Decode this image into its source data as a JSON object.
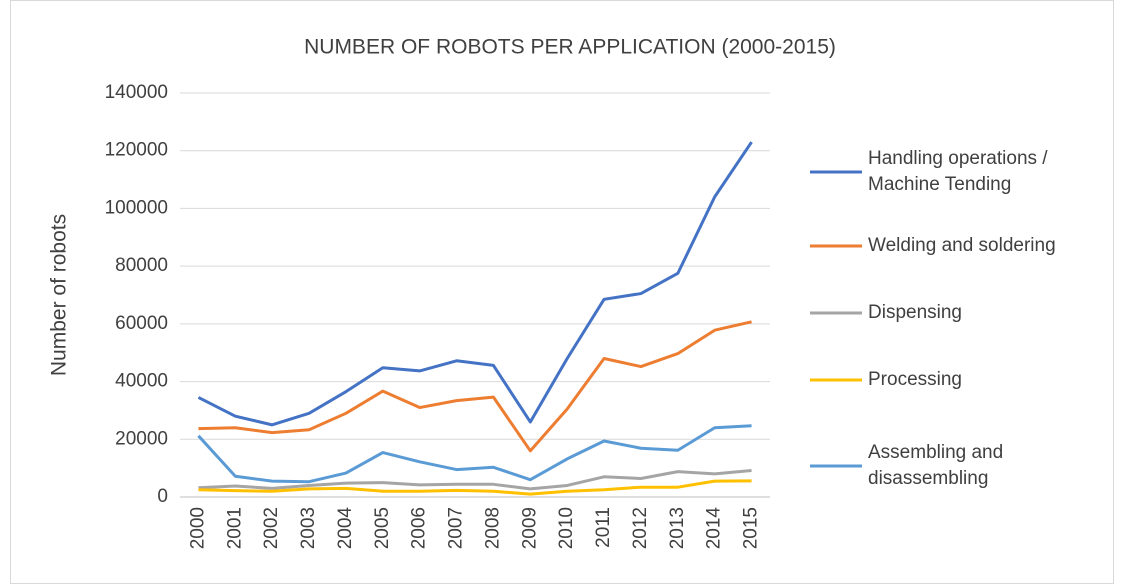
{
  "chart_data": {
    "type": "line",
    "title": "NUMBER OF ROBOTS PER APPLICATION (2000-2015)",
    "y_label": "Number of robots",
    "categories": [
      "2000",
      "2001",
      "2002",
      "2003",
      "2004",
      "2005",
      "2006",
      "2007",
      "2008",
      "2009",
      "2010",
      "2011",
      "2012",
      "2013",
      "2014",
      "2015"
    ],
    "series": [
      {
        "name": "Handling operations / Machine Tending",
        "color": "#4472c4",
        "values": [
          34500,
          28000,
          25000,
          29000,
          36500,
          44800,
          43700,
          47200,
          45600,
          26000,
          48000,
          68500,
          70500,
          77500,
          104000,
          123000
        ]
      },
      {
        "name": "Welding and soldering",
        "color": "#ed7d31",
        "values": [
          23700,
          24000,
          22300,
          23300,
          29000,
          36700,
          31000,
          33400,
          34600,
          16000,
          30500,
          48000,
          45200,
          49700,
          57800,
          60700
        ]
      },
      {
        "name": "Dispensing",
        "color": "#a5a5a5",
        "values": [
          3200,
          3800,
          3000,
          4000,
          4800,
          5000,
          4200,
          4400,
          4400,
          2800,
          4000,
          7000,
          6400,
          8800,
          8000,
          9200
        ]
      },
      {
        "name": "Processing",
        "color": "#ffc000",
        "values": [
          2500,
          2200,
          2000,
          2800,
          3000,
          2000,
          2000,
          2300,
          2000,
          1000,
          2000,
          2500,
          3400,
          3400,
          5500,
          5600
        ]
      },
      {
        "name": "Assembling and disassembling",
        "color": "#5b9bd5",
        "values": [
          21200,
          7200,
          5500,
          5300,
          8300,
          15400,
          12200,
          9500,
          10300,
          6000,
          13200,
          19400,
          16900,
          16200,
          24000,
          24700
        ]
      }
    ],
    "ylim": [
      0,
      140000
    ],
    "yticks": [
      0,
      20000,
      40000,
      60000,
      80000,
      100000,
      120000,
      140000
    ],
    "grid": true,
    "legend": "right"
  }
}
